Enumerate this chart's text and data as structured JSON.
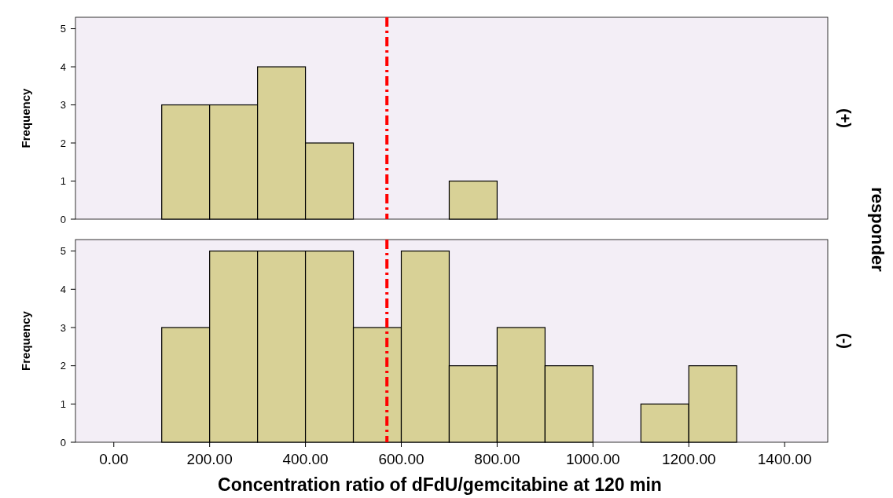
{
  "chart_data": [
    {
      "type": "histogram",
      "y2label": "(+)",
      "ylabel": "Frequency",
      "annotations": [
        "responder"
      ],
      "bins": [
        100,
        200,
        300,
        400,
        500,
        600,
        700,
        800,
        900,
        1000,
        1100,
        1200,
        1300
      ],
      "values": [
        3,
        3,
        4,
        2,
        0,
        0,
        1,
        0,
        0,
        0,
        0,
        0
      ],
      "color": "#d8d196",
      "xlim": [
        -80,
        1490
      ],
      "ylim": [
        0,
        5.3
      ],
      "yticks": [
        0,
        1,
        2,
        3,
        4,
        5
      ],
      "tick_labels": "y",
      "grid": false,
      "ref_lines": [
        {
          "axis": "x",
          "value": 570,
          "color": "#ff0000",
          "line_style": "dashed"
        }
      ]
    },
    {
      "type": "histogram",
      "y2label": "(-)",
      "ylabel": "Frequency",
      "xlabel": "Concentration ratio of dFdU/gemcitabine at 120 min",
      "bins": [
        100,
        200,
        300,
        400,
        500,
        600,
        700,
        800,
        900,
        1000,
        1100,
        1200,
        1300
      ],
      "values": [
        3,
        5,
        5,
        5,
        3,
        5,
        2,
        3,
        2,
        0,
        1,
        2
      ],
      "color": "#d8d196",
      "xlim": [
        -80,
        1490
      ],
      "ylim": [
        0,
        5.3
      ],
      "yticks": [
        0,
        1,
        2,
        3,
        4,
        5
      ],
      "xticks": [
        {
          "value": 0,
          "label": "0.00"
        },
        {
          "value": 200,
          "label": "200.00"
        },
        {
          "value": 400,
          "label": "400.00"
        },
        {
          "value": 600,
          "label": "600.00"
        },
        {
          "value": 800,
          "label": "800.00"
        },
        {
          "value": 1000,
          "label": "1000.00"
        },
        {
          "value": 1200,
          "label": "1200.00"
        },
        {
          "value": 1400,
          "label": "1400.00"
        }
      ],
      "grid": false,
      "ref_lines": [
        {
          "axis": "x",
          "value": 570,
          "color": "#ff0000",
          "line_style": "dashed"
        }
      ]
    }
  ]
}
